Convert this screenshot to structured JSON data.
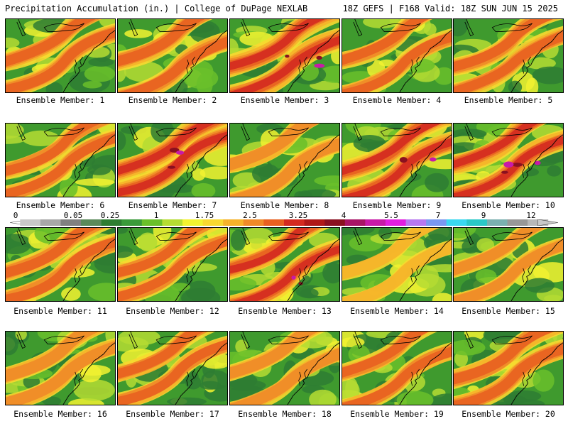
{
  "header": {
    "left": "Precipitation Accumulation (in.) | College of DuPage NEXLAB",
    "right": "18Z GEFS | F168 Valid: 18Z SUN JUN 15 2025"
  },
  "panels": [
    {
      "label": "Ensemble Member: 1",
      "intensity": 0.55
    },
    {
      "label": "Ensemble Member: 2",
      "intensity": 0.6
    },
    {
      "label": "Ensemble Member: 3",
      "intensity": 0.85
    },
    {
      "label": "Ensemble Member: 4",
      "intensity": 0.45
    },
    {
      "label": "Ensemble Member: 5",
      "intensity": 0.5
    },
    {
      "label": "Ensemble Member: 6",
      "intensity": 0.45
    },
    {
      "label": "Ensemble Member: 7",
      "intensity": 0.8
    },
    {
      "label": "Ensemble Member: 8",
      "intensity": 0.4
    },
    {
      "label": "Ensemble Member: 9",
      "intensity": 0.75
    },
    {
      "label": "Ensemble Member: 10",
      "intensity": 0.7
    },
    {
      "label": "Ensemble Member: 11",
      "intensity": 0.55
    },
    {
      "label": "Ensemble Member: 12",
      "intensity": 0.45
    },
    {
      "label": "Ensemble Member: 13",
      "intensity": 0.7
    },
    {
      "label": "Ensemble Member: 14",
      "intensity": 0.2
    },
    {
      "label": "Ensemble Member: 15",
      "intensity": 0.3
    },
    {
      "label": "Ensemble Member: 16",
      "intensity": 0.4
    },
    {
      "label": "Ensemble Member: 17",
      "intensity": 0.45
    },
    {
      "label": "Ensemble Member: 18",
      "intensity": 0.35
    },
    {
      "label": "Ensemble Member: 19",
      "intensity": 0.45
    },
    {
      "label": "Ensemble Member: 20",
      "intensity": 0.6
    }
  ],
  "legend": {
    "ticks": [
      "0",
      "0.05",
      "0.25",
      "1",
      "1.75",
      "2.5",
      "3.25",
      "4",
      "5.5",
      "7",
      "9",
      "12"
    ],
    "colors": [
      "#c8c8c8",
      "#a8a8a8",
      "#808080",
      "#5a8a5a",
      "#2e7d32",
      "#3a9a3a",
      "#6abf2a",
      "#b5dc32",
      "#f2f230",
      "#f8d830",
      "#f6b22a",
      "#f08a28",
      "#e86020",
      "#d42a20",
      "#b01818",
      "#8a1020",
      "#a81466",
      "#c81aa8",
      "#e21ee0",
      "#b878f0",
      "#7a98f0",
      "#3ad8f0",
      "#2ac8c8",
      "#7ab0b0",
      "#989898",
      "#b8b8b8"
    ]
  }
}
